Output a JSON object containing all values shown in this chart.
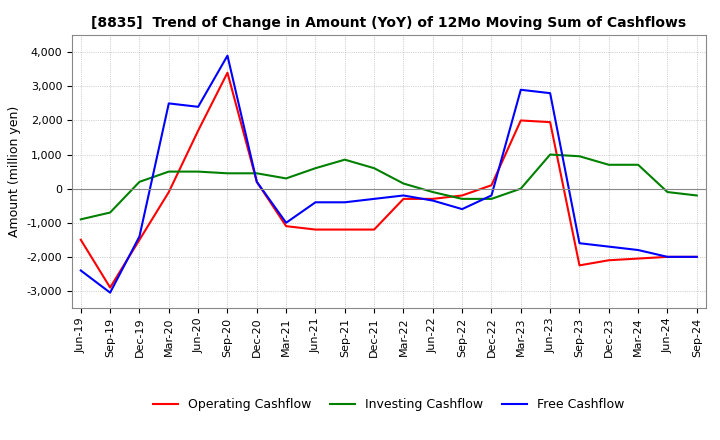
{
  "title": "[8835]  Trend of Change in Amount (YoY) of 12Mo Moving Sum of Cashflows",
  "ylabel": "Amount (million yen)",
  "ylim": [
    -3500,
    4500
  ],
  "yticks": [
    -3000,
    -2000,
    -1000,
    0,
    1000,
    2000,
    3000,
    4000
  ],
  "background_color": "#ffffff",
  "grid_color": "#aaaaaa",
  "dates": [
    "Jun-19",
    "Sep-19",
    "Dec-19",
    "Mar-20",
    "Jun-20",
    "Sep-20",
    "Dec-20",
    "Mar-21",
    "Jun-21",
    "Sep-21",
    "Dec-21",
    "Mar-22",
    "Jun-22",
    "Sep-22",
    "Dec-22",
    "Mar-23",
    "Jun-23",
    "Sep-23",
    "Dec-23",
    "Mar-24",
    "Jun-24",
    "Sep-24"
  ],
  "operating": [
    -1500,
    -2900,
    -1500,
    -100,
    1700,
    3400,
    200,
    -1100,
    -1200,
    -1200,
    -1200,
    -300,
    -300,
    -200,
    100,
    2000,
    1950,
    -2250,
    -2100,
    -2050,
    -2000,
    -2000
  ],
  "investing": [
    -900,
    -700,
    200,
    500,
    500,
    450,
    450,
    300,
    600,
    850,
    600,
    150,
    -100,
    -300,
    -300,
    0,
    1000,
    950,
    700,
    700,
    -100,
    -200
  ],
  "free": [
    -2400,
    -3050,
    -1400,
    2500,
    2400,
    3900,
    200,
    -1000,
    -400,
    -400,
    -300,
    -200,
    -350,
    -600,
    -200,
    2900,
    2800,
    -1600,
    -1700,
    -1800,
    -2000,
    -2000
  ],
  "op_color": "#ff0000",
  "inv_color": "#008000",
  "free_color": "#0000ff",
  "line_width": 1.5,
  "title_fontsize": 10,
  "axis_fontsize": 9,
  "tick_fontsize": 8
}
